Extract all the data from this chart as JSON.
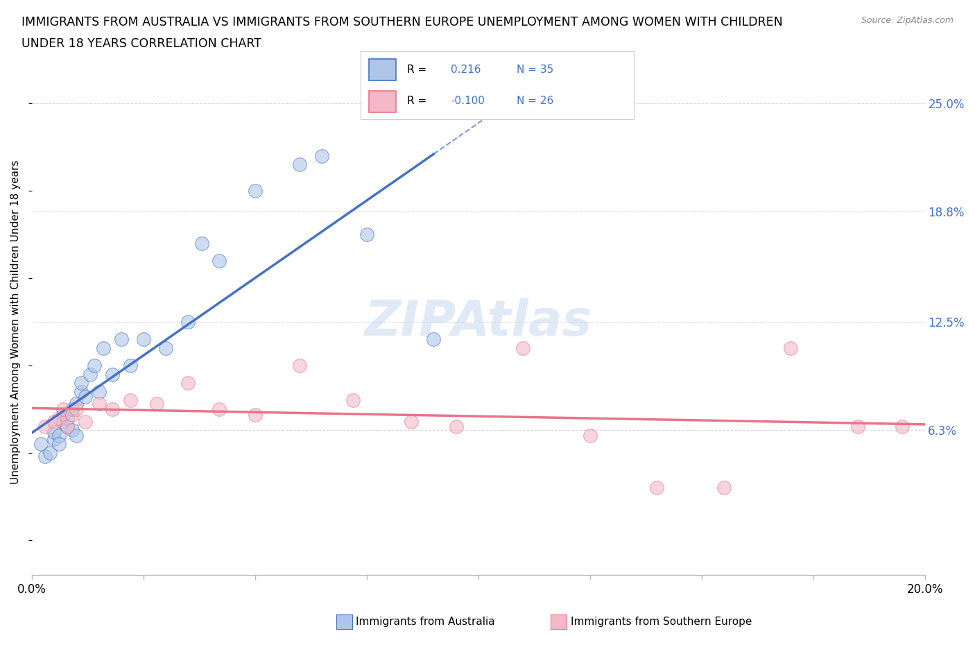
{
  "title_line1": "IMMIGRANTS FROM AUSTRALIA VS IMMIGRANTS FROM SOUTHERN EUROPE UNEMPLOYMENT AMONG WOMEN WITH CHILDREN",
  "title_line2": "UNDER 18 YEARS CORRELATION CHART",
  "source": "Source: ZipAtlas.com",
  "ylabel": "Unemployment Among Women with Children Under 18 years",
  "xlim": [
    0.0,
    0.2
  ],
  "ylim": [
    -0.02,
    0.27
  ],
  "ytick_values": [
    0.063,
    0.125,
    0.188,
    0.25
  ],
  "ytick_labels": [
    "6.3%",
    "12.5%",
    "18.8%",
    "25.0%"
  ],
  "color_australia": "#aec6e8",
  "color_southern_europe": "#f4b8c8",
  "color_australia_line": "#4472c4",
  "color_southern_europe_line": "#e8748a",
  "color_ytick": "#4472c4",
  "watermark_text": "ZIPAtlas",
  "australia_x": [
    0.002,
    0.003,
    0.004,
    0.005,
    0.005,
    0.006,
    0.006,
    0.007,
    0.007,
    0.008,
    0.008,
    0.009,
    0.009,
    0.01,
    0.01,
    0.011,
    0.011,
    0.012,
    0.013,
    0.014,
    0.015,
    0.016,
    0.018,
    0.02,
    0.022,
    0.025,
    0.03,
    0.035,
    0.038,
    0.042,
    0.05,
    0.06,
    0.065,
    0.075,
    0.09
  ],
  "australia_y": [
    0.055,
    0.048,
    0.05,
    0.058,
    0.062,
    0.06,
    0.055,
    0.068,
    0.072,
    0.065,
    0.07,
    0.063,
    0.075,
    0.078,
    0.06,
    0.085,
    0.09,
    0.082,
    0.095,
    0.1,
    0.085,
    0.11,
    0.095,
    0.115,
    0.1,
    0.115,
    0.11,
    0.125,
    0.17,
    0.16,
    0.2,
    0.215,
    0.22,
    0.175,
    0.115
  ],
  "southern_europe_x": [
    0.003,
    0.005,
    0.006,
    0.007,
    0.008,
    0.009,
    0.01,
    0.012,
    0.015,
    0.018,
    0.022,
    0.028,
    0.035,
    0.042,
    0.05,
    0.06,
    0.072,
    0.085,
    0.095,
    0.11,
    0.125,
    0.14,
    0.155,
    0.17,
    0.185,
    0.195
  ],
  "southern_europe_y": [
    0.065,
    0.068,
    0.07,
    0.075,
    0.065,
    0.072,
    0.075,
    0.068,
    0.078,
    0.075,
    0.08,
    0.078,
    0.09,
    0.075,
    0.072,
    0.1,
    0.08,
    0.068,
    0.065,
    0.11,
    0.06,
    0.03,
    0.03,
    0.11,
    0.065,
    0.065
  ],
  "background_color": "#ffffff",
  "grid_color": "#d8d8d8"
}
